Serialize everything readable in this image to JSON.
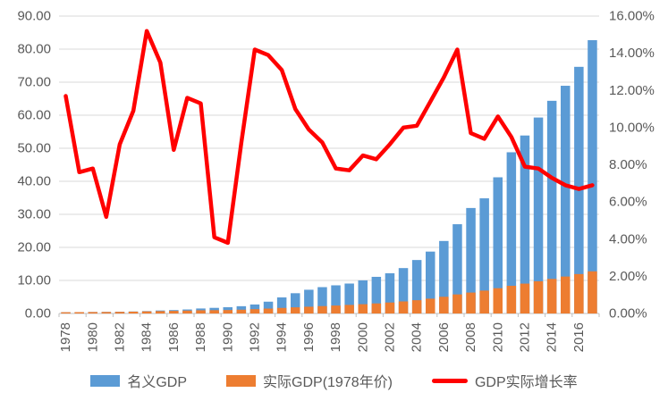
{
  "colors": {
    "nominal_bar": "#5B9BD5",
    "real_bar": "#ED7D31",
    "growth_line": "#FF0000",
    "gridline": "#D9D9D9",
    "axis_line": "#BFBFBF",
    "axis_text": "#595959"
  },
  "chart_data": {
    "type": "bar",
    "combo": true,
    "title": "",
    "xlabel": "",
    "ylabel_left": "",
    "ylabel_right": "",
    "grid": true,
    "legend_position": "bottom",
    "x": [
      1978,
      1979,
      1980,
      1981,
      1982,
      1983,
      1984,
      1985,
      1986,
      1987,
      1988,
      1989,
      1990,
      1991,
      1992,
      1993,
      1994,
      1995,
      1996,
      1997,
      1998,
      1999,
      2000,
      2001,
      2002,
      2003,
      2004,
      2005,
      2006,
      2007,
      2008,
      2009,
      2010,
      2011,
      2012,
      2013,
      2014,
      2015,
      2016,
      2017
    ],
    "x_axis_shown_labels": [
      "1978",
      "1980",
      "1982",
      "1984",
      "1986",
      "1988",
      "1990",
      "1992",
      "1994",
      "1996",
      "1998",
      "2000",
      "2002",
      "2004",
      "2006",
      "2008",
      "2010",
      "2012",
      "2014",
      "2016"
    ],
    "left_axis": {
      "min": 0,
      "max": 90,
      "step": 10,
      "tick_labels": [
        "0.00",
        "10.00",
        "20.00",
        "30.00",
        "40.00",
        "50.00",
        "60.00",
        "70.00",
        "80.00",
        "90.00"
      ]
    },
    "right_axis": {
      "min": 0,
      "max": 16,
      "step": 2,
      "tick_labels": [
        "0.00%",
        "2.00%",
        "4.00%",
        "6.00%",
        "8.00%",
        "10.00%",
        "12.00%",
        "14.00%",
        "16.00%"
      ]
    },
    "series": [
      {
        "name": "名义GDP",
        "render": "bar",
        "axis": "left",
        "color": "#5B9BD5",
        "values": [
          0.37,
          0.41,
          0.46,
          0.49,
          0.53,
          0.6,
          0.72,
          0.9,
          1.03,
          1.21,
          1.51,
          1.7,
          1.89,
          2.2,
          2.72,
          3.57,
          4.86,
          6.13,
          7.18,
          7.97,
          8.52,
          9.06,
          10.03,
          11.09,
          12.17,
          13.74,
          16.18,
          18.73,
          21.94,
          27.01,
          31.92,
          34.85,
          41.21,
          48.79,
          53.86,
          59.3,
          64.36,
          68.91,
          74.64,
          82.71
        ]
      },
      {
        "name": "实际GDP(1978年价)",
        "render": "bar",
        "axis": "left",
        "color": "#ED7D31",
        "values": [
          0.37,
          0.4,
          0.43,
          0.45,
          0.49,
          0.55,
          0.63,
          0.71,
          0.78,
          0.87,
          0.97,
          1.0,
          1.04,
          1.14,
          1.3,
          1.48,
          1.68,
          1.86,
          2.04,
          2.23,
          2.4,
          2.59,
          2.81,
          3.04,
          3.32,
          3.65,
          4.02,
          4.48,
          5.05,
          5.77,
          6.33,
          6.92,
          7.65,
          8.38,
          9.04,
          9.75,
          10.46,
          11.18,
          11.93,
          12.75
        ]
      },
      {
        "name": "GDP实际增长率",
        "render": "line",
        "axis": "right",
        "unit": "%",
        "color": "#FF0000",
        "values": [
          11.7,
          7.6,
          7.8,
          5.2,
          9.1,
          10.9,
          15.2,
          13.5,
          8.8,
          11.6,
          11.3,
          4.1,
          3.8,
          9.2,
          14.2,
          13.9,
          13.1,
          11.0,
          9.9,
          9.2,
          7.8,
          7.7,
          8.5,
          8.3,
          9.1,
          10.0,
          10.1,
          11.4,
          12.7,
          14.2,
          9.7,
          9.4,
          10.6,
          9.5,
          7.9,
          7.8,
          7.3,
          6.9,
          6.7,
          6.9
        ]
      }
    ]
  },
  "legend": {
    "items": [
      {
        "label": "名义GDP"
      },
      {
        "label": "实际GDP(1978年价)"
      },
      {
        "label": "GDP实际增长率"
      }
    ]
  }
}
